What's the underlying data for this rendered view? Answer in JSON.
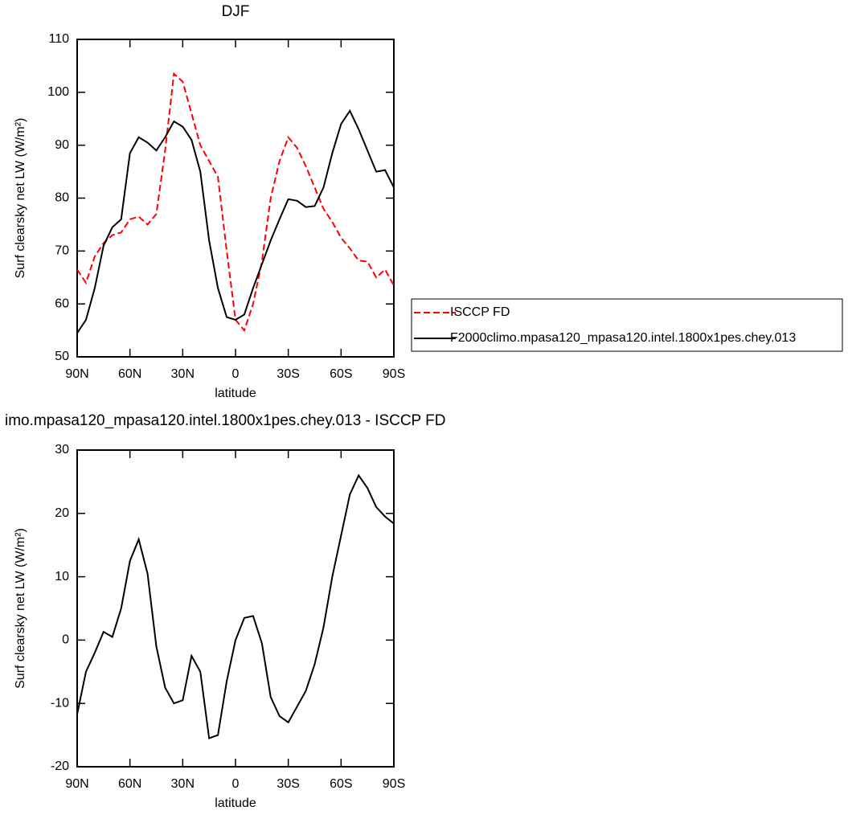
{
  "chart_data": [
    {
      "type": "line",
      "title": "DJF",
      "xlabel": "latitude",
      "ylabel": "Surf clearsky net LW (W/m²)",
      "x": [
        90,
        85,
        80,
        75,
        70,
        65,
        60,
        55,
        50,
        45,
        40,
        35,
        30,
        25,
        20,
        15,
        10,
        5,
        0,
        -5,
        -10,
        -15,
        -20,
        -25,
        -30,
        -35,
        -40,
        -45,
        -50,
        -55,
        -60,
        -65,
        -70,
        -75,
        -80,
        -85,
        -90
      ],
      "series": [
        {
          "name": "ISCCP FD",
          "color": "#ff0000",
          "dash": true,
          "values": [
            66.5,
            64,
            69,
            71.5,
            73,
            73.5,
            76,
            76.5,
            75,
            77,
            89,
            103.5,
            102,
            96,
            90,
            87,
            84,
            70,
            57,
            55,
            60,
            68,
            80,
            87,
            91.5,
            89.5,
            86,
            82,
            78,
            75.5,
            72.5,
            70.5,
            68.2,
            68,
            65,
            66.5,
            63.5
          ]
        },
        {
          "name": "F2000climo.mpasa120_mpasa120.intel.1800x1pes.chey.013",
          "color": "#000000",
          "dash": false,
          "values": [
            54.5,
            57,
            63,
            71,
            74.5,
            76,
            88.5,
            91.5,
            90.5,
            89,
            91.5,
            94.5,
            93.5,
            91,
            85,
            72,
            63,
            57.5,
            57,
            58,
            63,
            67.5,
            72,
            76,
            79.8,
            79.5,
            78.3,
            78.5,
            82,
            88.5,
            94,
            96.5,
            93,
            89,
            85,
            85.3,
            82
          ]
        }
      ],
      "xlim": [
        90,
        -90
      ],
      "xticks": [
        {
          "value": 90,
          "label": "90N"
        },
        {
          "value": 60,
          "label": "60N"
        },
        {
          "value": 30,
          "label": "30N"
        },
        0,
        {
          "value": -30,
          "label": "30S"
        },
        {
          "value": -60,
          "label": "60S"
        },
        {
          "value": -90,
          "label": "90S"
        }
      ],
      "ylim": [
        50,
        110
      ],
      "yticks": [
        50,
        60,
        70,
        80,
        90,
        100,
        110
      ],
      "legend": "right"
    },
    {
      "type": "line",
      "title": "imo.mpasa120_mpasa120.intel.1800x1pes.chey.013 - ISCCP FD",
      "xlabel": "latitude",
      "ylabel": "Surf clearsky net LW (W/m²)",
      "x": [
        90,
        85,
        80,
        75,
        70,
        65,
        60,
        55,
        50,
        45,
        40,
        35,
        30,
        25,
        20,
        15,
        10,
        5,
        0,
        -5,
        -10,
        -15,
        -20,
        -25,
        -30,
        -35,
        -40,
        -45,
        -50,
        -55,
        -60,
        -65,
        -70,
        -75,
        -80,
        -85,
        -90
      ],
      "series": [
        {
          "color": "#000000",
          "dash": false,
          "values": [
            -11.7,
            -5,
            -2,
            1.3,
            0.5,
            5,
            12.5,
            15.9,
            10.5,
            -1,
            -7.5,
            -10,
            -9.5,
            -2.5,
            -5,
            -15.5,
            -15,
            -6.5,
            0,
            3.5,
            3.8,
            -0.5,
            -9,
            -12,
            -13,
            -10.5,
            -8,
            -3.8,
            2,
            10,
            16.5,
            23,
            26,
            24,
            21,
            19.5,
            18.4
          ]
        }
      ],
      "xlim": [
        90,
        -90
      ],
      "xticks": [
        {
          "value": 90,
          "label": "90N"
        },
        {
          "value": 60,
          "label": "60N"
        },
        {
          "value": 30,
          "label": "30N"
        },
        0,
        {
          "value": -30,
          "label": "30S"
        },
        {
          "value": -60,
          "label": "60S"
        },
        {
          "value": -90,
          "label": "90S"
        }
      ],
      "ylim": [
        -20,
        30
      ],
      "yticks": [
        -20,
        -10,
        0,
        10,
        20,
        30
      ]
    }
  ]
}
